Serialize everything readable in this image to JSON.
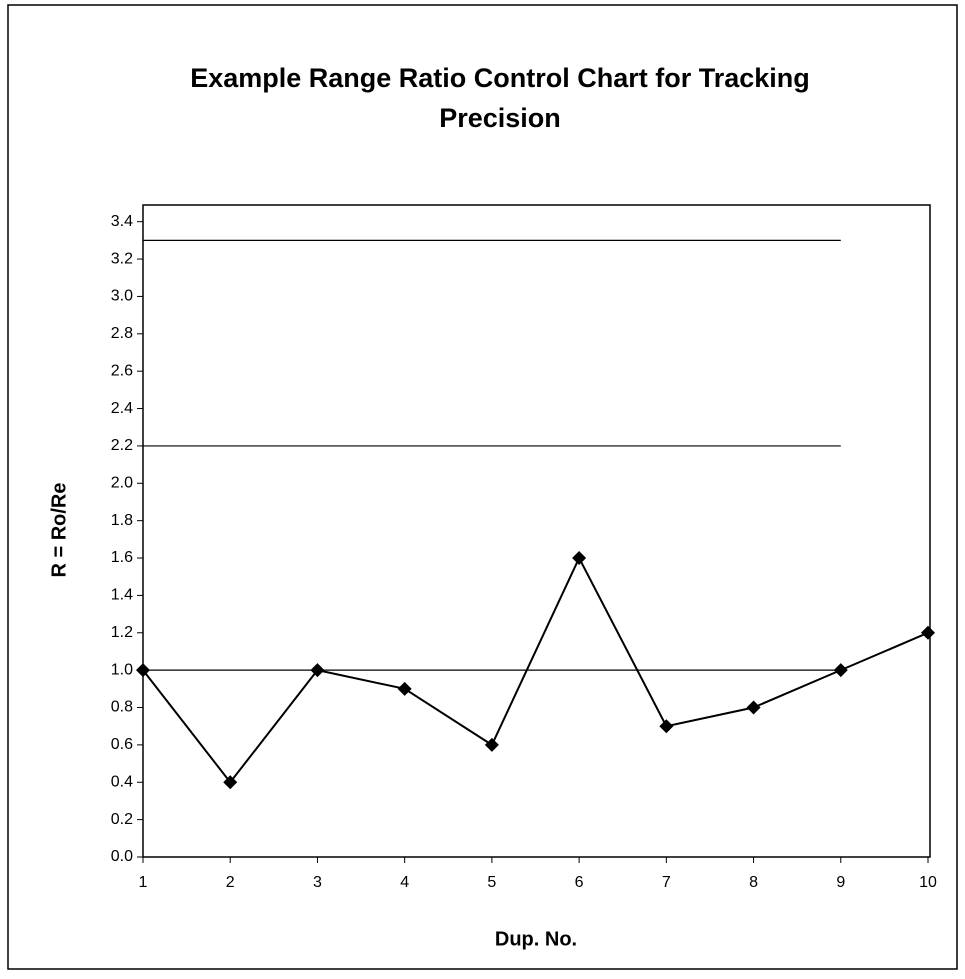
{
  "chart_data": {
    "type": "line",
    "title": "Example Range Ratio Control Chart for Tracking",
    "title_line2": "Precision",
    "x_label": "Dup. No.",
    "y_label": "R = Ro/Re",
    "x": [
      1,
      2,
      3,
      4,
      5,
      6,
      7,
      8,
      9,
      10
    ],
    "series": [
      {
        "color": "#000000",
        "values": [
          1.0,
          0.4,
          1.0,
          0.9,
          0.6,
          1.6,
          0.7,
          0.8,
          1.0,
          1.2
        ]
      }
    ],
    "reference_lines": [
      {
        "y": 3.3,
        "x": [
          1,
          9
        ]
      },
      {
        "y": 2.2,
        "x": [
          1,
          9
        ]
      },
      {
        "y": 1.0,
        "x": [
          1,
          9
        ]
      }
    ],
    "xlim": [
      1,
      10
    ],
    "xticks": [
      1,
      2,
      3,
      4,
      5,
      6,
      7,
      8,
      9,
      10
    ],
    "ylim": [
      0,
      3.5
    ],
    "yticks": [
      {
        "value": 0,
        "label": "0.0"
      },
      {
        "value": 0.2,
        "label": "0.2"
      },
      {
        "value": 0.4,
        "label": "0.4"
      },
      {
        "value": 0.6,
        "label": "0.6"
      },
      {
        "value": 0.8,
        "label": "0.8"
      },
      {
        "value": 1.0,
        "label": "1.0"
      },
      {
        "value": 1.2,
        "label": "1.2"
      },
      {
        "value": 1.4,
        "label": "1.4"
      },
      {
        "value": 1.6,
        "label": "1.6"
      },
      {
        "value": 1.8,
        "label": "1.8"
      },
      {
        "value": 2.0,
        "label": "2.0"
      },
      {
        "value": 2.2,
        "label": "2.2"
      },
      {
        "value": 2.4,
        "label": "2.4"
      },
      {
        "value": 2.6,
        "label": "2.6"
      },
      {
        "value": 2.8,
        "label": "2.8"
      },
      {
        "value": 3.0,
        "label": "3.0"
      },
      {
        "value": 3.2,
        "label": "3.2"
      },
      {
        "value": 3.4,
        "label": "3.4"
      }
    ],
    "grid": false
  }
}
